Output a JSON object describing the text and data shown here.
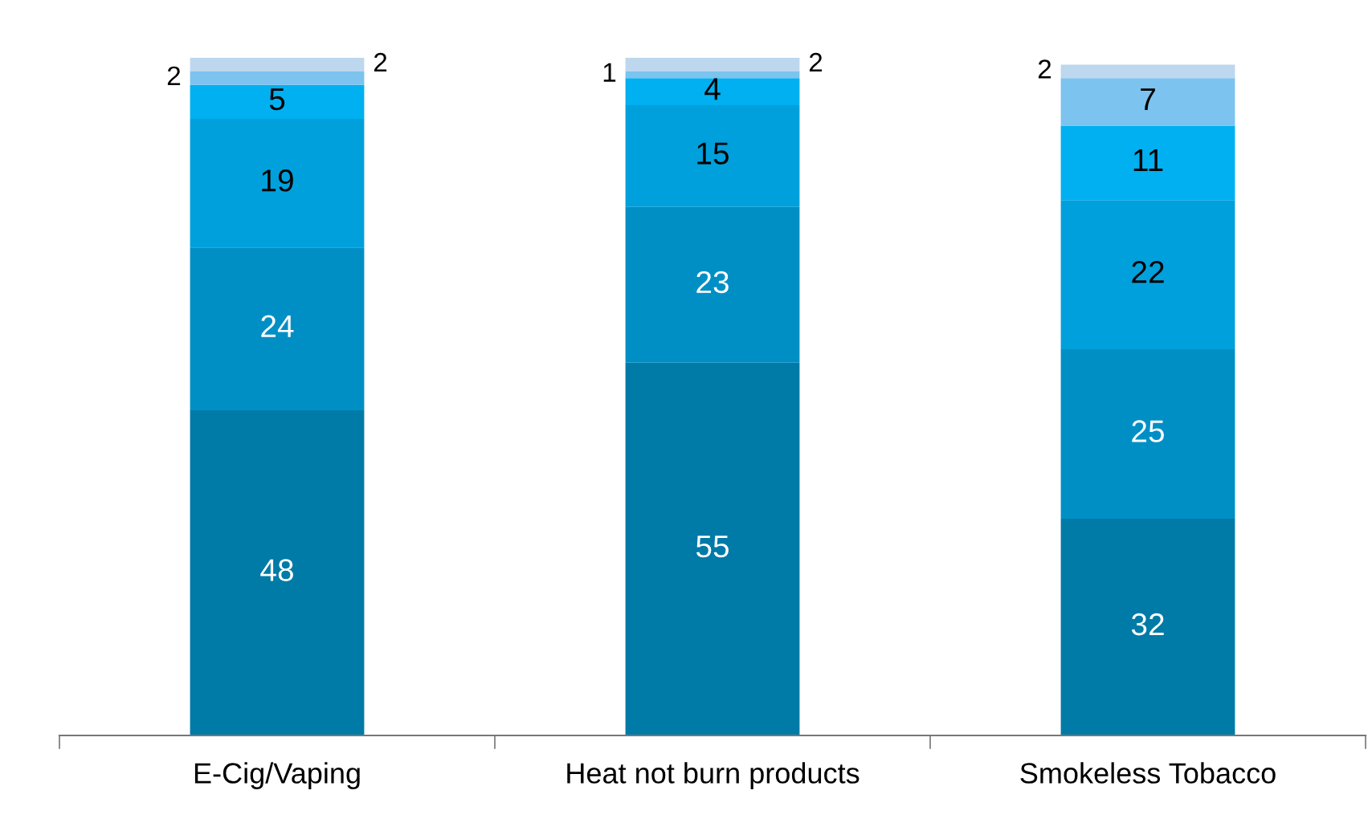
{
  "chart_data": {
    "type": "bar",
    "stacked": true,
    "categories": [
      "E-Cig/Vaping",
      "Heat not burn products",
      "Smokeless Tobacco"
    ],
    "ylim": [
      0,
      100
    ],
    "tick_labels": "x",
    "data_labels": true,
    "grid": false,
    "legend": false,
    "series": [
      {
        "color": "#007aa6",
        "values": [
          48,
          55,
          32
        ]
      },
      {
        "color": "#008fc5",
        "values": [
          24,
          23,
          25
        ]
      },
      {
        "color": "#00a0dc",
        "values": [
          19,
          15,
          22
        ]
      },
      {
        "color": "#00b0f0",
        "values": [
          5,
          4,
          11
        ]
      },
      {
        "color": "#7cc3ef",
        "values": [
          2,
          1,
          7
        ]
      },
      {
        "color": "#bdd7ee",
        "values": [
          2,
          2,
          2
        ]
      }
    ]
  }
}
